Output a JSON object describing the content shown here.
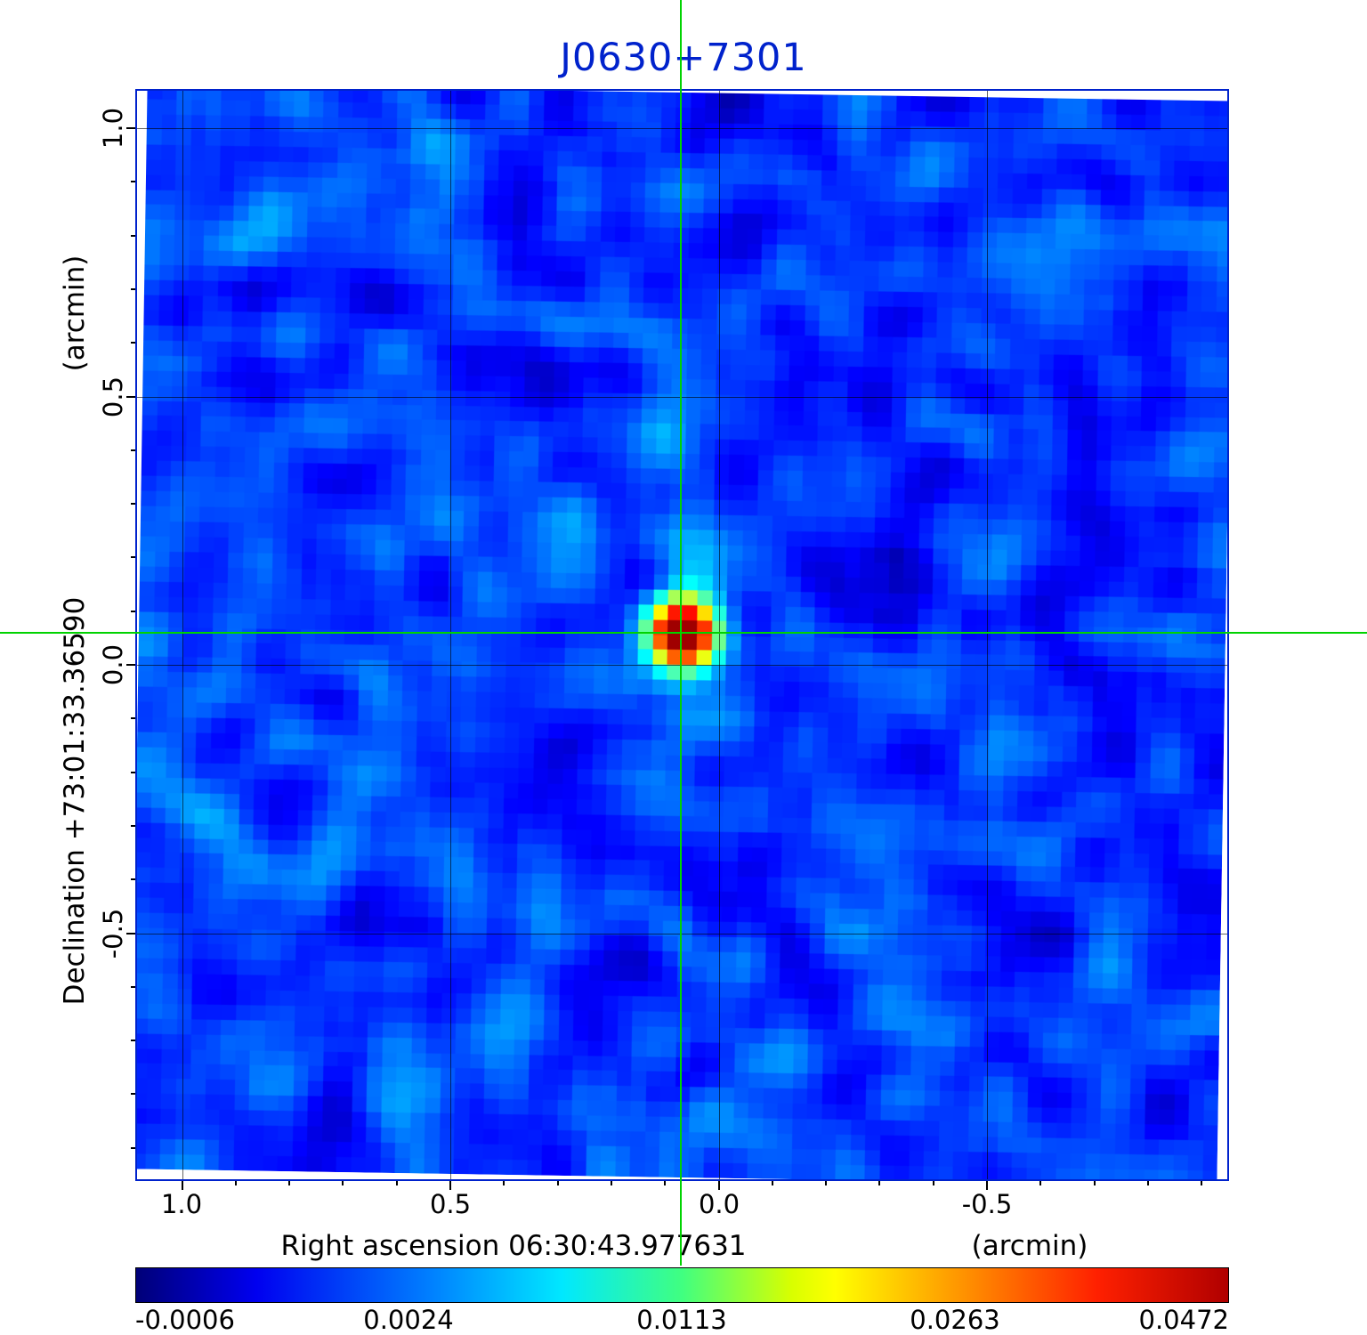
{
  "title": "J0630+7301",
  "colors": {
    "accent_blue": "#0022cc",
    "crosshair_green": "#00d300",
    "grid_line": "rgba(0,0,0,0.6)"
  },
  "axes": {
    "x_title": "Right ascension  06:30:43.977631",
    "x_unit": "(arcmin)",
    "y_title": "Declination  +73:01:33.36590",
    "y_unit": "(arcmin)",
    "x_ticks": [
      "1.0",
      "0.5",
      "0.0",
      "-0.5"
    ],
    "y_ticks": [
      "1.0",
      "0.5",
      "0.0",
      "-0.5"
    ]
  },
  "colorbar": {
    "colormap": "jet",
    "tick_labels": [
      "-0.0006",
      "0.0024",
      "0.0113",
      "0.0263",
      "0.0472"
    ]
  },
  "chart_data": {
    "type": "heatmap",
    "title": "J0630+7301",
    "xlabel": "Right ascension 06:30:43.977631 (arcmin)",
    "ylabel": "Declination +73:01:33.36590 (arcmin)",
    "x_tick_values_arcmin": [
      1.0,
      0.5,
      0.0,
      -0.5
    ],
    "y_tick_values_arcmin": [
      1.0,
      0.5,
      0.0,
      -0.5
    ],
    "x_range_arcmin": [
      1.08,
      -0.95
    ],
    "y_range_arcmin": [
      1.07,
      -0.96
    ],
    "grid": true,
    "colormap": "jet",
    "value_range": [
      -0.0006,
      0.0472
    ],
    "colorbar_tick_values": [
      -0.0006,
      0.0024,
      0.0113,
      0.0263,
      0.0472
    ],
    "crosshair_offset_arcmin": {
      "x": 0.07,
      "y": 0.06
    },
    "point_source": {
      "name": "J0630+7301",
      "offset_arcmin": {
        "x": 0.07,
        "y": 0.06
      },
      "peak_value": 0.0472
    },
    "render": {
      "grid_nx": 74,
      "grid_ny": 72,
      "seed": 1337,
      "smooth_passes": 2,
      "noise_lo": 0.05,
      "noise_hi": 0.3,
      "peak": {
        "col_frac": 0.5,
        "row_frac": 0.5,
        "amp": 0.95,
        "sigma_cells": 1.7
      },
      "secondary": {
        "col_frac": 0.485,
        "row_frac": 0.315,
        "amp": 0.11,
        "sigma_cells": 2.2
      },
      "streak": {
        "amp": 0.05,
        "sigma_x_cells": 1.4,
        "sigma_y_cells": 9
      }
    }
  }
}
